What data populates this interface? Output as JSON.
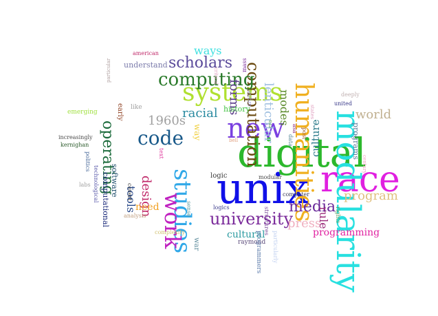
{
  "words": [
    {
      "text": "unix",
      "color": "#1010e8"
    },
    {
      "text": "digital",
      "color": "#2db82d"
    },
    {
      "text": "race",
      "color": "#e020e0"
    },
    {
      "text": "modularity",
      "color": "#28e0e0"
    },
    {
      "text": "humanities",
      "color": "#f0b020"
    },
    {
      "text": "new",
      "color": "#7a40e0"
    },
    {
      "text": "studies",
      "color": "#30a8e8"
    },
    {
      "text": "systems",
      "color": "#b0e030"
    },
    {
      "text": "computation",
      "color": "#6a4a10"
    },
    {
      "text": "work",
      "color": "#c020c0"
    },
    {
      "text": "university",
      "color": "#7a2a9a"
    },
    {
      "text": "code",
      "color": "#1a5a8a"
    },
    {
      "text": "computing",
      "color": "#2a7a2a"
    },
    {
      "text": "operating",
      "color": "#1a6a3a"
    },
    {
      "text": "media",
      "color": "#6a2a9a"
    },
    {
      "text": "program",
      "color": "#e0c080"
    },
    {
      "text": "scholars",
      "color": "#5a4a9a"
    },
    {
      "text": "lenticular",
      "color": "#a0c0e0"
    },
    {
      "text": "forms",
      "color": "#5a3a8a"
    },
    {
      "text": "racial",
      "color": "#2a8aa0"
    },
    {
      "text": "1960s",
      "color": "#a0a0a0"
    },
    {
      "text": "ways",
      "color": "#40e0e0"
    },
    {
      "text": "design",
      "color": "#c02a6a"
    },
    {
      "text": "tools",
      "color": "#2a4a8a"
    },
    {
      "text": "world",
      "color": "#c0b090"
    },
    {
      "text": "culture",
      "color": "#2a7a8a"
    },
    {
      "text": "modes",
      "color": "#5a8a2a"
    },
    {
      "text": "press",
      "color": "#f0b0c0"
    },
    {
      "text": "rule",
      "color": "#9a2a7a"
    },
    {
      "text": "programming",
      "color": "#e020a0"
    },
    {
      "text": "cultural",
      "color": "#2a9aa0"
    },
    {
      "text": "need",
      "color": "#f0a020"
    },
    {
      "text": "software",
      "color": "#1a4a6a"
    },
    {
      "text": "computational",
      "color": "#1a2a7a"
    },
    {
      "text": "programs",
      "color": "#5a7a9a"
    },
    {
      "text": "understand",
      "color": "#7a7aaa"
    },
    {
      "text": "history",
      "color": "#40c040"
    },
    {
      "text": "way",
      "color": "#f0d040"
    },
    {
      "text": "early",
      "color": "#8a3a1a"
    },
    {
      "text": "logic",
      "color": "#3a3a3a"
    },
    {
      "text": "war",
      "color": "#5a8a9a"
    },
    {
      "text": "raymond",
      "color": "#5a4a7a"
    },
    {
      "text": "logics",
      "color": "#3a3a8a"
    },
    {
      "text": "mass",
      "color": "#7a2a9a"
    },
    {
      "text": "argue",
      "color": "#a0a0e0"
    },
    {
      "text": "like",
      "color": "#a0a0a0"
    },
    {
      "text": "emerging",
      "color": "#a0e040"
    },
    {
      "text": "increasingly",
      "color": "#4a4a4a"
    },
    {
      "text": "kernighan",
      "color": "#2a5a2a"
    },
    {
      "text": "politics",
      "color": "#4a6a9a"
    },
    {
      "text": "technological",
      "color": "#5a5aaa"
    },
    {
      "text": "labs",
      "color": "#a0a0a0"
    },
    {
      "text": "covert",
      "color": "#3a3a3a"
    },
    {
      "text": "analysis",
      "color": "#c0a080"
    },
    {
      "text": "complexity",
      "color": "#d0c070"
    },
    {
      "text": "american",
      "color": "#c02a6a"
    },
    {
      "text": "particular",
      "color": "#b0a0a0"
    },
    {
      "text": "critical",
      "color": "#e0a0c0"
    },
    {
      "text": "text",
      "color": "#e040a0"
    },
    {
      "text": "sense",
      "color": "#5a9aa0"
    },
    {
      "text": "modular",
      "color": "#4a4a4a"
    },
    {
      "text": "computer",
      "color": "#3a3a5a"
    },
    {
      "text": "structures",
      "color": "#7a4a9a"
    },
    {
      "text": "programmers",
      "color": "#5a7aaa"
    },
    {
      "text": "particularly",
      "color": "#c0d0f0"
    },
    {
      "text": "rights",
      "color": "#5a9a5a"
    },
    {
      "text": "century",
      "color": "#f0a0c0"
    },
    {
      "text": "deeply",
      "color": "#c0b0b0"
    },
    {
      "text": "united",
      "color": "#3a3a8a"
    },
    {
      "text": "states",
      "color": "#e0a0c0"
    },
    {
      "text": "post",
      "color": "#a05a2a"
    },
    {
      "text": "asa",
      "color": "#8a2a7a"
    },
    {
      "text": "data",
      "color": "#5a8a9a"
    },
    {
      "text": "era",
      "color": "#5a9a5a"
    },
    {
      "text": "bell",
      "color": "#e0a080"
    }
  ]
}
